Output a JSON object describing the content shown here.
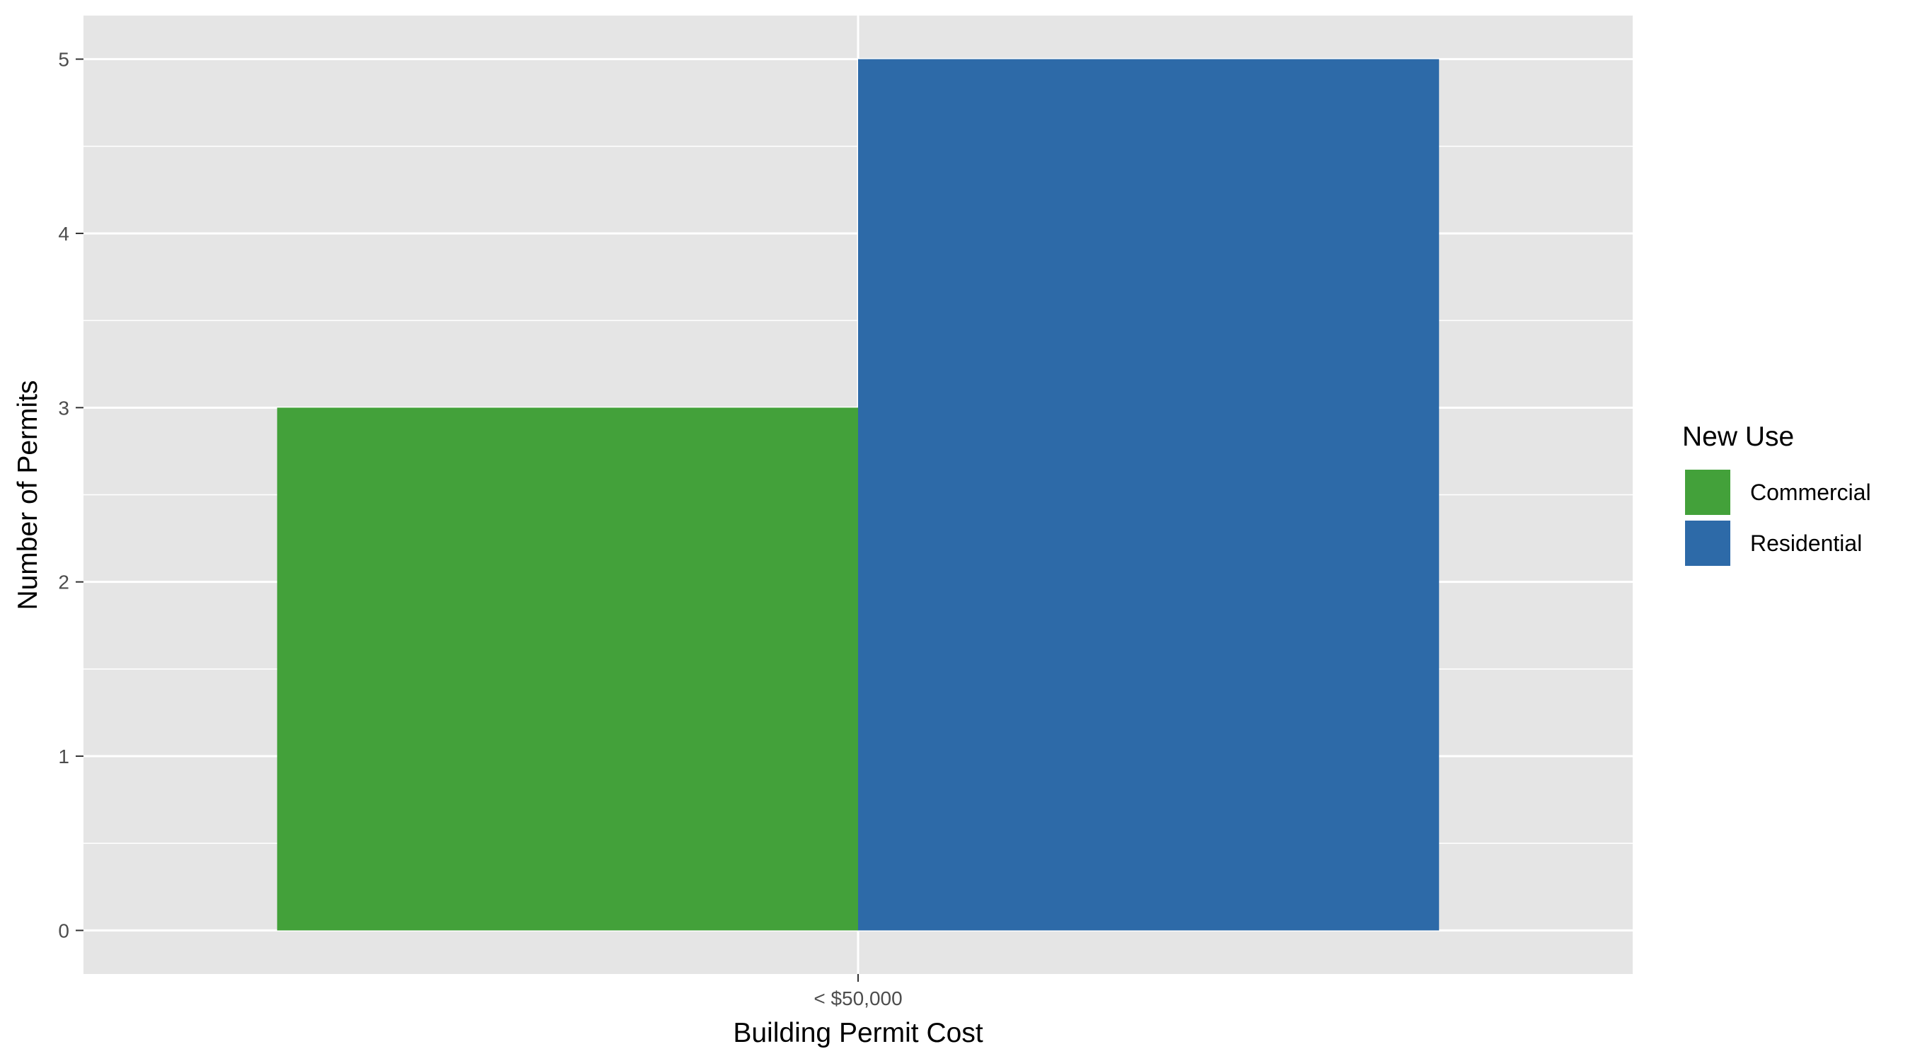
{
  "chart_data": {
    "type": "bar",
    "categories": [
      "< $50,000"
    ],
    "series": [
      {
        "name": "Commercial",
        "values": [
          3
        ],
        "color": "#43a13a"
      },
      {
        "name": "Residential",
        "values": [
          5
        ],
        "color": "#2d6aa8"
      }
    ],
    "title": "",
    "xlabel": "Building Permit Cost",
    "ylabel": "Number of Permits",
    "ylim": [
      -0.25,
      5.25
    ],
    "yticks": [
      0,
      1,
      2,
      3,
      4,
      5
    ],
    "grid": true,
    "legend": {
      "title": "New Use",
      "position": "right"
    },
    "colors": {
      "panel_background": "#e5e5e5",
      "grid": "#ffffff",
      "tick_text": "#4d4d4d",
      "tick_mark": "#333333"
    }
  }
}
